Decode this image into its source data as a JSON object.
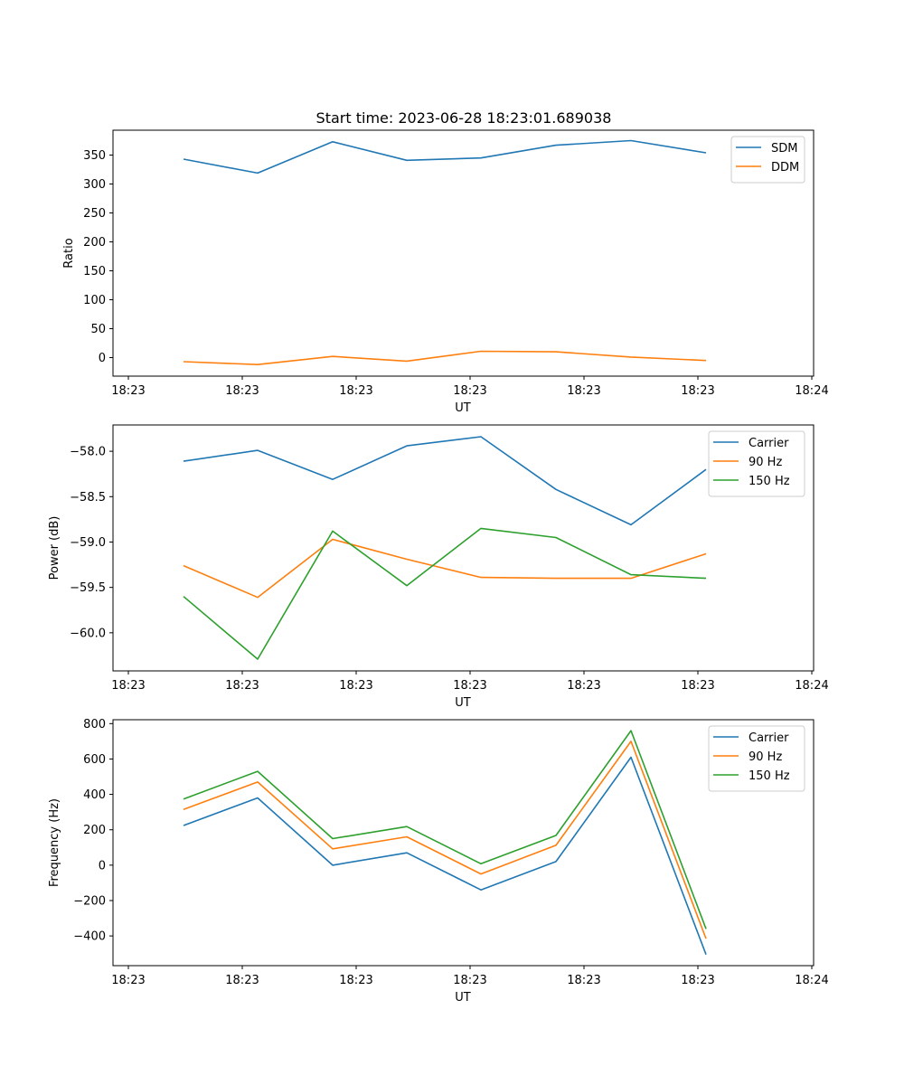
{
  "title": "Start time: 2023-06-28 18:23:01.689038",
  "chart_data": [
    {
      "type": "line",
      "ylabel": "Ratio",
      "xlabel": "UT",
      "x_tick_labels": [
        "18:23",
        "18:23",
        "18:23",
        "18:23",
        "18:23",
        "18:23",
        "18:24"
      ],
      "y_ticks": [
        0,
        50,
        100,
        150,
        200,
        250,
        300,
        350
      ],
      "ylim": [
        -32,
        393
      ],
      "legend_position": "top-right",
      "series": [
        {
          "name": "SDM",
          "color": "#1f77b4",
          "values": [
            343,
            319,
            373,
            341,
            345,
            367,
            375,
            354
          ]
        },
        {
          "name": "DDM",
          "color": "#ff7f0e",
          "values": [
            -7,
            -12,
            2,
            -6,
            11,
            10,
            1,
            -5
          ]
        }
      ]
    },
    {
      "type": "line",
      "ylabel": "Power (dB)",
      "xlabel": "UT",
      "x_tick_labels": [
        "18:23",
        "18:23",
        "18:23",
        "18:23",
        "18:23",
        "18:23",
        "18:24"
      ],
      "y_ticks": [
        -60.0,
        -59.5,
        -59.0,
        -58.5,
        -58.0
      ],
      "y_tick_labels": [
        "−60.0",
        "−59.5",
        "−59.0",
        "−58.5",
        "−58.0"
      ],
      "ylim": [
        -60.42,
        -57.71
      ],
      "legend_position": "top-right",
      "series": [
        {
          "name": "Carrier",
          "color": "#1f77b4",
          "values": [
            -58.11,
            -57.99,
            -58.31,
            -57.94,
            -57.84,
            -58.42,
            -58.81,
            -58.2
          ]
        },
        {
          "name": "90 Hz",
          "color": "#ff7f0e",
          "values": [
            -59.26,
            -59.61,
            -58.97,
            -59.19,
            -59.39,
            -59.4,
            -59.4,
            -59.13
          ]
        },
        {
          "name": "150 Hz",
          "color": "#2ca02c",
          "values": [
            -59.6,
            -60.29,
            -58.88,
            -59.48,
            -58.85,
            -58.95,
            -59.36,
            -59.4
          ]
        }
      ]
    },
    {
      "type": "line",
      "ylabel": "Frequency (Hz)",
      "xlabel": "UT",
      "x_tick_labels": [
        "18:23",
        "18:23",
        "18:23",
        "18:23",
        "18:23",
        "18:23",
        "18:24"
      ],
      "y_ticks": [
        -400,
        -200,
        0,
        200,
        400,
        600,
        800
      ],
      "y_tick_labels": [
        "−400",
        "−200",
        "0",
        "200",
        "400",
        "600",
        "800"
      ],
      "ylim": [
        -568,
        822
      ],
      "legend_position": "top-right",
      "series": [
        {
          "name": "Carrier",
          "color": "#1f77b4",
          "values": [
            224,
            380,
            0,
            70,
            -140,
            20,
            610,
            -505
          ]
        },
        {
          "name": "90 Hz",
          "color": "#ff7f0e",
          "values": [
            315,
            470,
            92,
            160,
            -50,
            112,
            700,
            -415
          ]
        },
        {
          "name": "150 Hz",
          "color": "#2ca02c",
          "values": [
            374,
            530,
            150,
            218,
            8,
            168,
            760,
            -360
          ]
        }
      ]
    }
  ]
}
